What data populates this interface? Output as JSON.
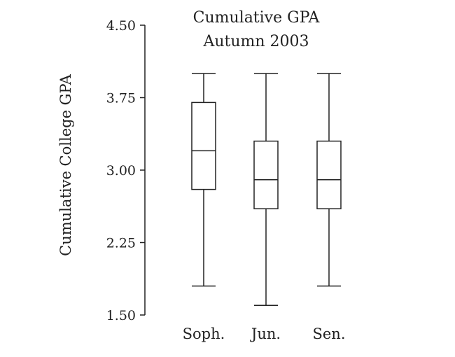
{
  "chart_data": {
    "type": "box",
    "title": "Cumulative GPA",
    "subtitle": "Autumn 2003",
    "ylabel": "Cumulative College GPA",
    "xlabel": "",
    "ylim": [
      1.5,
      4.5
    ],
    "yticks": [
      "1.50",
      "2.25",
      "3.00",
      "3.75",
      "4.50"
    ],
    "ytick_values": [
      1.5,
      2.25,
      3.0,
      3.75,
      4.5
    ],
    "grid": false,
    "categories": [
      "Soph.",
      "Jun.",
      "Sen."
    ],
    "boxes": [
      {
        "label": "Soph.",
        "min": 1.8,
        "q1": 2.8,
        "median": 3.2,
        "q3": 3.7,
        "max": 4.0
      },
      {
        "label": "Jun.",
        "min": 1.6,
        "q1": 2.6,
        "median": 2.9,
        "q3": 3.3,
        "max": 4.0
      },
      {
        "label": "Sen.",
        "min": 1.8,
        "q1": 2.6,
        "median": 2.9,
        "q3": 3.3,
        "max": 4.0
      }
    ]
  }
}
